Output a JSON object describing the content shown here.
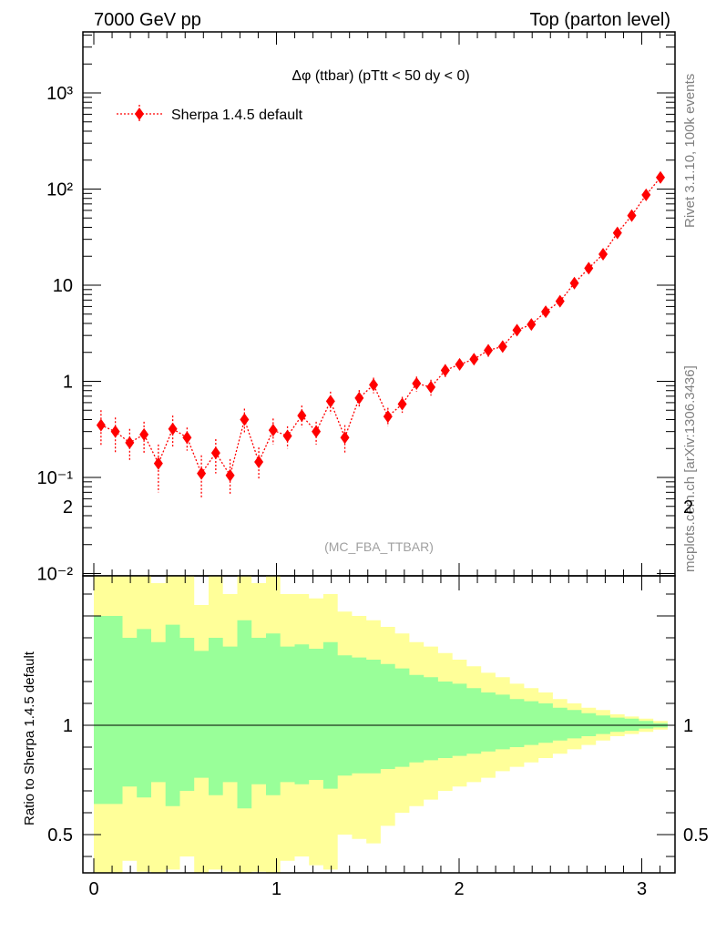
{
  "header": {
    "left": "7000 GeV pp",
    "right": "Top (parton level)"
  },
  "side_labels": {
    "rivet": "Rivet 3.1.10,  100k events",
    "mcplots": "mcplots.cern.ch [arXiv:1306.3436]"
  },
  "chart_data": [
    {
      "type": "line",
      "title": "Δφ (ttbar) (pTtt < 50 dy < 0)",
      "watermark": "(MC_FBA_TTBAR)",
      "yscale": "log",
      "ylim": [
        0.008,
        5000
      ],
      "xlim": [
        -0.05,
        3.2
      ],
      "legend": {
        "position": "top-left",
        "entries": [
          "Sherpa 1.4.5 default"
        ]
      },
      "y_tick_labels": [
        "10⁻²",
        "10⁻¹",
        "1",
        "10",
        "10²",
        "10³"
      ],
      "colors": {
        "series": "#ff0000"
      },
      "series": [
        {
          "name": "Sherpa 1.4.5 default",
          "x": [
            0.0393,
            0.1178,
            0.1963,
            0.2749,
            0.3534,
            0.432,
            0.5105,
            0.589,
            0.6676,
            0.7461,
            0.8247,
            0.9032,
            0.9817,
            1.0603,
            1.1388,
            1.2174,
            1.2959,
            1.3744,
            1.453,
            1.5315,
            1.6101,
            1.6886,
            1.7671,
            1.8457,
            1.9242,
            2.0028,
            2.0813,
            2.1598,
            2.2384,
            2.3169,
            2.3955,
            2.474,
            2.5525,
            2.6311,
            2.7096,
            2.7882,
            2.8667,
            2.9452,
            3.0238,
            3.1023
          ],
          "y": [
            0.35,
            0.3,
            0.23,
            0.28,
            0.14,
            0.32,
            0.26,
            0.11,
            0.18,
            0.105,
            0.4,
            0.145,
            0.31,
            0.27,
            0.44,
            0.3,
            0.62,
            0.26,
            0.67,
            0.92,
            0.43,
            0.58,
            0.95,
            0.87,
            1.3,
            1.5,
            1.7,
            2.1,
            2.3,
            3.4,
            3.9,
            5.3,
            6.8,
            10.5,
            15.0,
            21.0,
            35.0,
            53.0,
            87.0,
            132.0
          ],
          "err_lo": [
            0.14,
            0.12,
            0.08,
            0.1,
            0.07,
            0.11,
            0.07,
            0.05,
            0.07,
            0.04,
            0.11,
            0.05,
            0.09,
            0.07,
            0.11,
            0.08,
            0.16,
            0.08,
            0.14,
            0.17,
            0.09,
            0.11,
            0.17,
            0.16,
            0.2,
            0.2,
            0.2,
            0.3,
            0.3,
            0.3,
            0.4,
            0.5,
            0.6,
            0.8,
            1.0,
            1.2,
            1.6,
            2.2,
            3.0,
            4.0
          ],
          "err_hi": [
            0.15,
            0.12,
            0.09,
            0.1,
            0.08,
            0.12,
            0.07,
            0.06,
            0.07,
            0.05,
            0.12,
            0.06,
            0.1,
            0.07,
            0.12,
            0.08,
            0.16,
            0.09,
            0.14,
            0.17,
            0.1,
            0.11,
            0.17,
            0.17,
            0.2,
            0.2,
            0.2,
            0.3,
            0.3,
            0.3,
            0.4,
            0.5,
            0.6,
            0.8,
            1.0,
            1.2,
            1.6,
            2.2,
            3.0,
            4.0
          ]
        }
      ]
    },
    {
      "type": "area",
      "ylabel": "Ratio to Sherpa 1.4.5 default",
      "ylim": [
        0.35,
        2.3
      ],
      "xlim": [
        -0.05,
        3.2
      ],
      "x_tick_labels": [
        "0",
        "1",
        "2",
        "3"
      ],
      "y_tick_labels": [
        "0.5",
        "1",
        "2"
      ],
      "colors": {
        "inner_band": "#99ff99",
        "outer_band": "#ffff99",
        "reference": "#000000"
      },
      "bins": {
        "edges": [
          0.0,
          0.0785,
          0.157,
          0.2356,
          0.3141,
          0.3927,
          0.4712,
          0.5498,
          0.6283,
          0.7069,
          0.7854,
          0.8639,
          0.9425,
          1.021,
          1.0996,
          1.1781,
          1.2566,
          1.3352,
          1.4137,
          1.4923,
          1.5708,
          1.6493,
          1.7279,
          1.8064,
          1.885,
          1.9635,
          2.042,
          2.1206,
          2.1991,
          2.2777,
          2.3562,
          2.4347,
          2.5133,
          2.5918,
          2.6704,
          2.7489,
          2.8274,
          2.906,
          2.9845,
          3.0631,
          3.1416
        ],
        "outer_up": [
          1.9,
          1.9,
          1.75,
          1.85,
          1.65,
          1.9,
          1.75,
          1.55,
          1.75,
          1.6,
          1.9,
          1.65,
          1.75,
          1.6,
          1.6,
          1.58,
          1.6,
          1.52,
          1.5,
          1.48,
          1.45,
          1.42,
          1.38,
          1.36,
          1.33,
          1.3,
          1.27,
          1.24,
          1.22,
          1.19,
          1.17,
          1.15,
          1.12,
          1.1,
          1.08,
          1.07,
          1.05,
          1.04,
          1.03,
          1.02
        ],
        "inner_up": [
          1.5,
          1.5,
          1.4,
          1.44,
          1.38,
          1.46,
          1.4,
          1.34,
          1.4,
          1.36,
          1.48,
          1.4,
          1.42,
          1.36,
          1.37,
          1.35,
          1.38,
          1.32,
          1.31,
          1.3,
          1.28,
          1.26,
          1.23,
          1.22,
          1.2,
          1.19,
          1.17,
          1.15,
          1.14,
          1.12,
          1.11,
          1.1,
          1.08,
          1.07,
          1.055,
          1.045,
          1.035,
          1.03,
          1.02,
          1.01
        ],
        "inner_dn": [
          0.64,
          0.64,
          0.72,
          0.67,
          0.74,
          0.63,
          0.7,
          0.76,
          0.68,
          0.74,
          0.62,
          0.73,
          0.68,
          0.74,
          0.73,
          0.75,
          0.71,
          0.77,
          0.78,
          0.78,
          0.8,
          0.81,
          0.83,
          0.84,
          0.85,
          0.86,
          0.87,
          0.88,
          0.89,
          0.9,
          0.91,
          0.92,
          0.93,
          0.94,
          0.95,
          0.96,
          0.97,
          0.975,
          0.985,
          0.99
        ],
        "outer_dn": [
          0.3,
          0.3,
          0.38,
          0.33,
          0.32,
          0.34,
          0.4,
          0.3,
          0.34,
          0.33,
          0.27,
          0.33,
          0.32,
          0.38,
          0.4,
          0.36,
          0.34,
          0.5,
          0.48,
          0.46,
          0.54,
          0.6,
          0.63,
          0.66,
          0.7,
          0.72,
          0.74,
          0.76,
          0.79,
          0.81,
          0.83,
          0.85,
          0.87,
          0.89,
          0.91,
          0.93,
          0.95,
          0.96,
          0.97,
          0.98
        ]
      }
    }
  ]
}
